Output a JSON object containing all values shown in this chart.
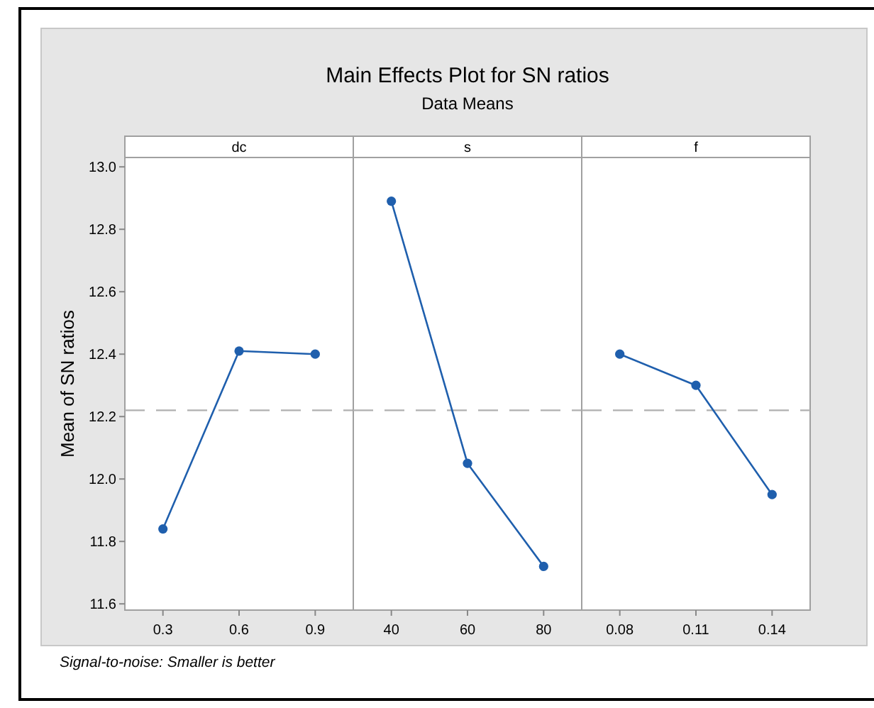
{
  "chart_data": [
    {
      "type": "line",
      "xlabel": "dc",
      "ylabel": "Mean of SN ratios",
      "categories": [
        "0.3",
        "0.6",
        "0.9"
      ],
      "series": [
        {
          "color": "#1f5fad",
          "values": [
            11.84,
            12.41,
            12.4
          ]
        }
      ],
      "ylim": [
        11.58,
        13.03
      ],
      "yticks": [
        {
          "value": 11.6,
          "label": "11.6"
        },
        {
          "value": 11.8,
          "label": "11.8"
        },
        {
          "value": 12,
          "label": "12.0"
        },
        {
          "value": 12.2,
          "label": "12.2"
        },
        {
          "value": 12.4,
          "label": "12.4"
        },
        {
          "value": 12.6,
          "label": "12.6"
        },
        {
          "value": 12.8,
          "label": "12.8"
        },
        {
          "value": 13,
          "label": "13.0"
        }
      ],
      "marker": "circle",
      "line_style": "solid",
      "ref_lines": [
        {
          "axis": "y",
          "value": 12.22,
          "color": "#b0b0b0",
          "line_style": "dashed"
        }
      ],
      "annotations": [
        "Signal-to-noise: Smaller is better"
      ]
    },
    {
      "type": "line",
      "title": "Main Effects Plot for SN ratios",
      "subtitle": "Data Means",
      "xlabel": "s",
      "categories": [
        "40",
        "60",
        "80"
      ],
      "series": [
        {
          "color": "#1f5fad",
          "values": [
            12.89,
            12.05,
            11.72
          ]
        }
      ],
      "ylim": [
        11.58,
        13.03
      ],
      "tick_labels": "x",
      "marker": "circle",
      "line_style": "solid",
      "ref_lines": [
        {
          "axis": "y",
          "value": 12.22,
          "color": "#b0b0b0",
          "line_style": "dashed"
        }
      ]
    },
    {
      "type": "line",
      "xlabel": "f",
      "categories": [
        "0.08",
        "0.11",
        "0.14"
      ],
      "series": [
        {
          "color": "#1f5fad",
          "values": [
            12.4,
            12.3,
            11.95
          ]
        }
      ],
      "ylim": [
        11.58,
        13.03
      ],
      "tick_labels": "x",
      "marker": "circle",
      "line_style": "solid",
      "ref_lines": [
        {
          "axis": "y",
          "value": 12.22,
          "color": "#b0b0b0",
          "line_style": "dashed"
        }
      ]
    }
  ]
}
